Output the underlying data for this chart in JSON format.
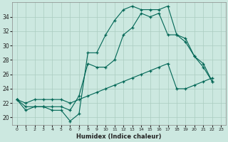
{
  "xlabel": "Humidex (Indice chaleur)",
  "bg_color": "#cce8e0",
  "grid_color": "#aaccc0",
  "line_color": "#006655",
  "xlim": [
    -0.5,
    23.5
  ],
  "ylim": [
    19.0,
    36.0
  ],
  "yticks": [
    20,
    22,
    24,
    26,
    28,
    30,
    32,
    34
  ],
  "xticks": [
    0,
    1,
    2,
    3,
    4,
    5,
    6,
    7,
    8,
    9,
    10,
    11,
    12,
    13,
    14,
    15,
    16,
    17,
    18,
    19,
    20,
    21,
    22,
    23
  ],
  "series": [
    {
      "x": [
        0,
        1,
        2,
        3,
        4,
        5,
        6,
        7,
        8,
        9,
        10,
        11,
        12,
        13,
        14,
        15,
        16,
        17,
        18,
        19,
        20,
        21,
        22
      ],
      "y": [
        22.5,
        21.0,
        21.5,
        21.5,
        21.0,
        21.0,
        19.5,
        20.5,
        29.0,
        29.0,
        31.5,
        33.5,
        35.0,
        35.5,
        35.0,
        35.0,
        35.0,
        35.5,
        31.5,
        31.0,
        28.5,
        27.0,
        25.0
      ]
    },
    {
      "x": [
        0,
        1,
        2,
        3,
        4,
        5,
        6,
        7,
        8,
        9,
        10,
        11,
        12,
        13,
        14,
        15,
        16,
        17,
        18,
        19,
        20,
        21,
        22
      ],
      "y": [
        22.5,
        21.5,
        21.5,
        21.5,
        21.5,
        21.5,
        21.0,
        23.0,
        27.5,
        27.0,
        27.0,
        28.0,
        31.5,
        32.5,
        34.5,
        34.0,
        34.5,
        31.5,
        31.5,
        30.5,
        28.5,
        27.5,
        25.0
      ]
    },
    {
      "x": [
        0,
        1,
        2,
        3,
        4,
        5,
        6,
        7,
        8,
        9,
        10,
        11,
        12,
        13,
        14,
        15,
        16,
        17,
        18,
        19,
        20,
        21,
        22
      ],
      "y": [
        22.5,
        22.0,
        22.5,
        22.5,
        22.5,
        22.5,
        22.0,
        22.5,
        23.0,
        23.5,
        24.0,
        24.5,
        25.0,
        25.5,
        26.0,
        26.5,
        27.0,
        27.5,
        24.0,
        24.0,
        24.5,
        25.0,
        25.5
      ]
    }
  ]
}
